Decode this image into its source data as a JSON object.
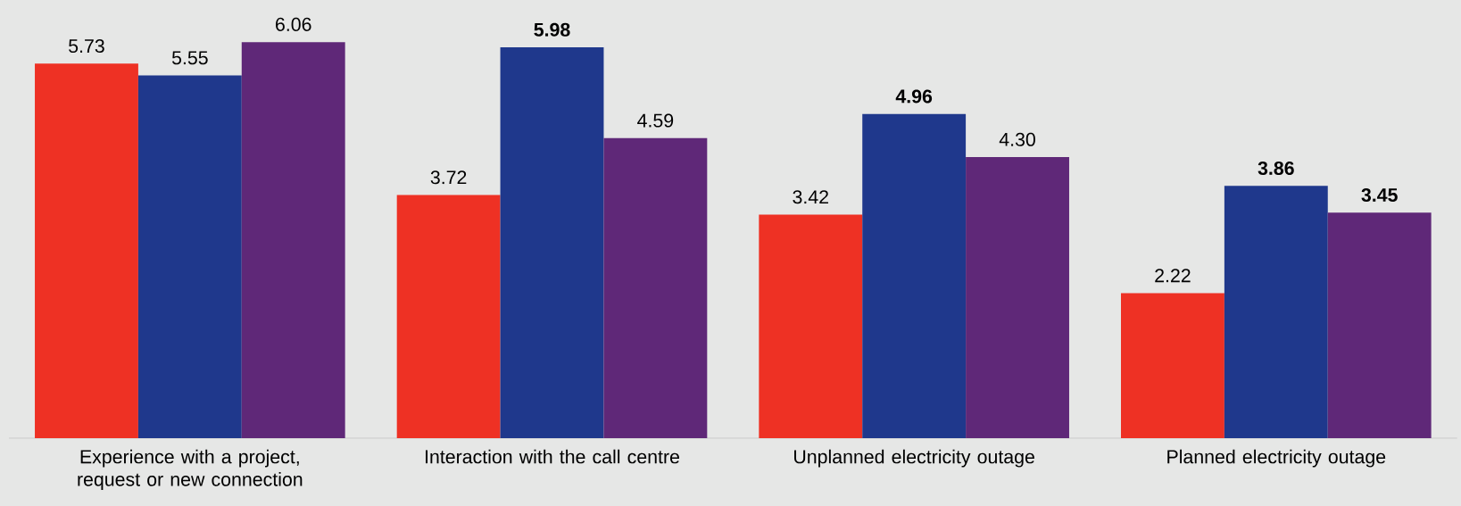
{
  "chart_data": {
    "type": "bar",
    "categories": [
      "Experience with a project, request or new connection",
      "Interaction with the call centre",
      "Unplanned electricity outage",
      "Planned electricity outage"
    ],
    "series": [
      {
        "color": "#ee3124",
        "values": [
          5.73,
          3.72,
          3.42,
          2.22
        ],
        "value_labels": [
          "5.73",
          "3.72",
          "3.42",
          "2.22"
        ]
      },
      {
        "color": "#1f388c",
        "values": [
          5.55,
          5.98,
          4.96,
          3.86
        ],
        "value_labels": [
          "5.55",
          "**5.98**",
          "**4.96**",
          "**3.86**"
        ]
      },
      {
        "color": "#5f2878",
        "values": [
          6.06,
          4.59,
          4.3,
          3.45
        ],
        "value_labels": [
          "6.06",
          "4.59",
          "4.30",
          "**3.45**"
        ]
      }
    ],
    "ylim": [
      0,
      6.7
    ]
  }
}
